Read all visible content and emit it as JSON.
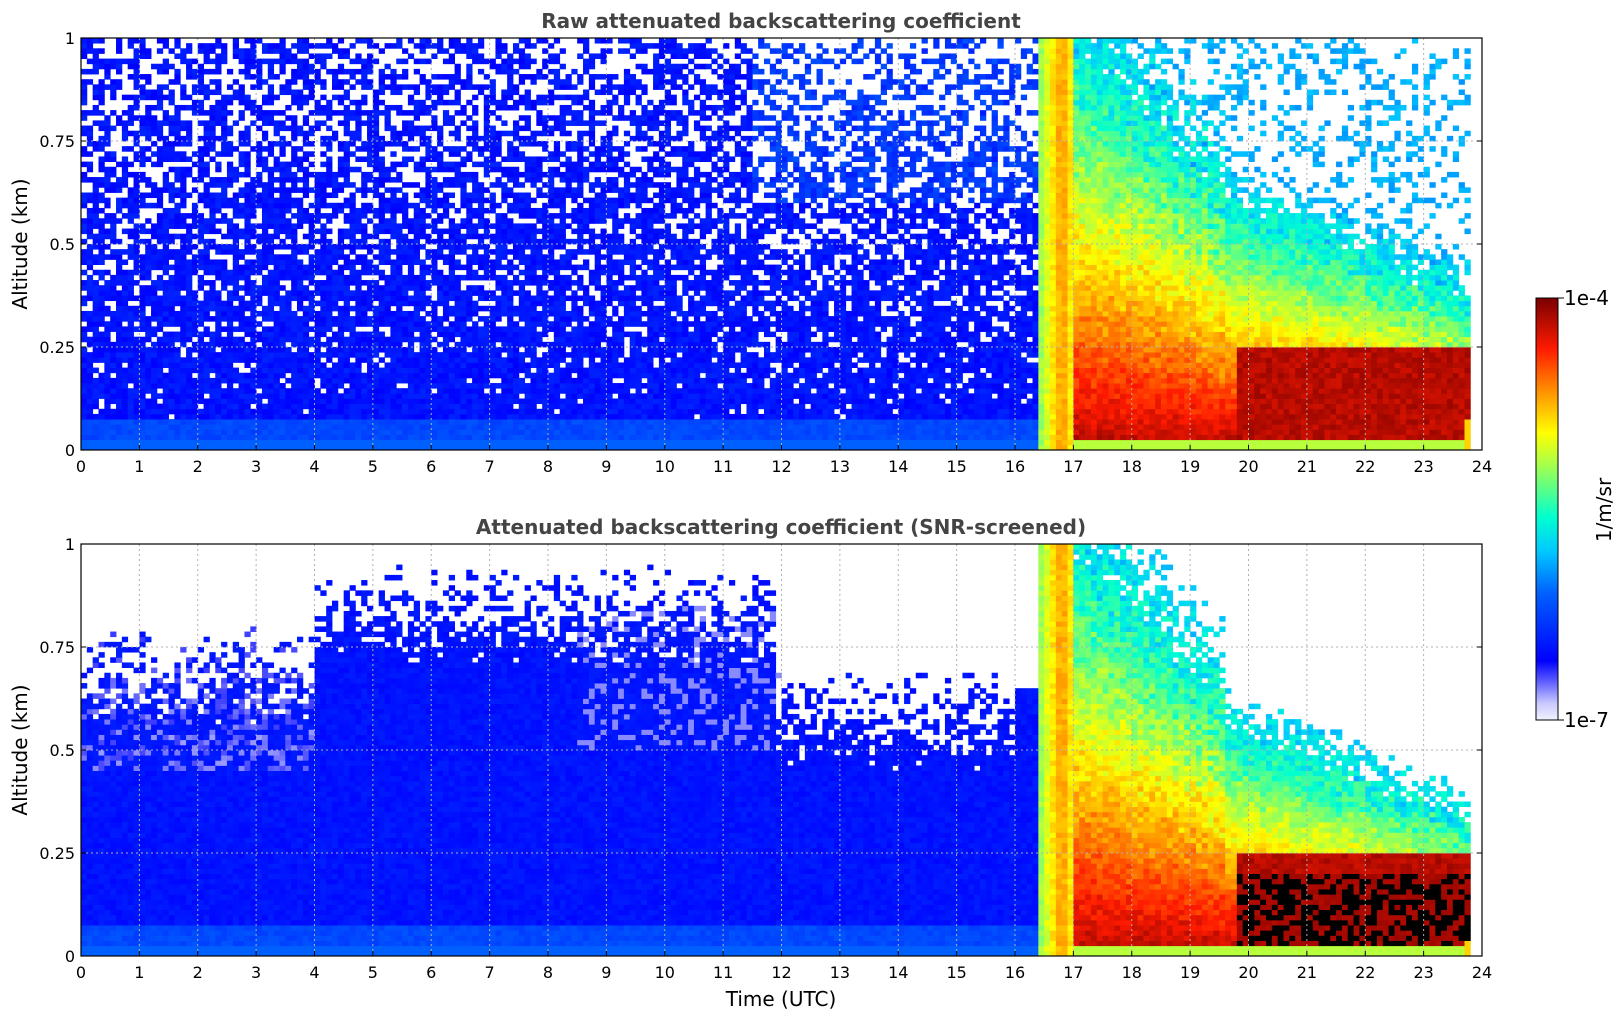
{
  "chart_data": [
    {
      "type": "heatmap",
      "title": "Raw attenuated backscattering coefficient",
      "xlabel": "",
      "ylabel": "Altitude (km)",
      "xlim": [
        0,
        24
      ],
      "ylim": [
        0,
        1
      ],
      "xticks": [
        "0",
        "1",
        "2",
        "3",
        "4",
        "5",
        "6",
        "7",
        "8",
        "9",
        "10",
        "11",
        "12",
        "13",
        "14",
        "15",
        "16",
        "17",
        "18",
        "19",
        "20",
        "21",
        "22",
        "23",
        "24"
      ],
      "yticks": [
        "0",
        "0.25",
        "0.5",
        "0.75",
        "1"
      ],
      "grid": true,
      "screened": false
    },
    {
      "type": "heatmap",
      "title": "Attenuated backscattering coefficient (SNR-screened)",
      "xlabel": "Time (UTC)",
      "ylabel": "Altitude (km)",
      "xlim": [
        0,
        24
      ],
      "ylim": [
        0,
        1
      ],
      "xticks": [
        "0",
        "1",
        "2",
        "3",
        "4",
        "5",
        "6",
        "7",
        "8",
        "9",
        "10",
        "11",
        "12",
        "13",
        "14",
        "15",
        "16",
        "17",
        "18",
        "19",
        "20",
        "21",
        "22",
        "23",
        "24"
      ],
      "yticks": [
        "0",
        "0.25",
        "0.5",
        "0.75",
        "1"
      ],
      "grid": true,
      "screened": true
    }
  ],
  "colorbar": {
    "label": "1/m/sr",
    "max_label": "1e-4",
    "min_label": "1e-7",
    "colormap": "jet",
    "scale": "log"
  },
  "colors": {
    "background_clear": "#0a14f0",
    "aerosol_layer": "#ff3c00",
    "strong_signal": "#7a0000",
    "title_color": "#444444"
  }
}
